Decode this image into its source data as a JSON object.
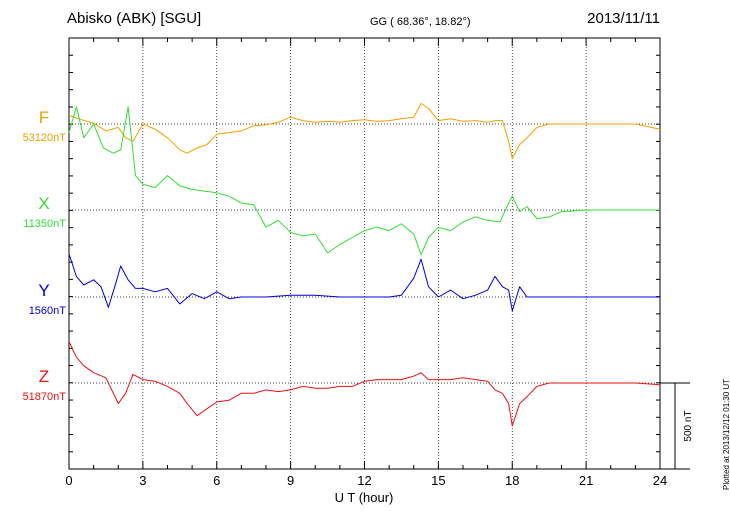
{
  "header": {
    "station": "Abisko (ABK)  [SGU]",
    "coords": "GG ( 68.36°,  18.82°)",
    "date": "2013/11/11"
  },
  "footer_note": "Plotted at 2013/12/12 01:30 UT",
  "scale_bar_label": "500 nT",
  "chart_data": {
    "type": "line",
    "xlabel": "U T (hour)",
    "xlim": [
      0,
      24
    ],
    "xticks": [
      0,
      3,
      6,
      9,
      12,
      15,
      18,
      21,
      24
    ],
    "scale_bar_nT": 500,
    "series": [
      {
        "name": "F",
        "baseline_label": "53120nT",
        "color": "#f0a000",
        "offset_nT": 0,
        "x": [
          0,
          0.5,
          1.0,
          1.5,
          2.0,
          2.3,
          2.6,
          3.0,
          3.5,
          4.0,
          4.5,
          4.8,
          5.2,
          5.6,
          6.0,
          6.5,
          7.0,
          7.5,
          8.0,
          8.5,
          9.0,
          9.5,
          10.0,
          10.5,
          11.0,
          11.5,
          12.0,
          12.5,
          13.0,
          13.5,
          14.0,
          14.3,
          14.6,
          15.0,
          15.5,
          16.0,
          16.5,
          17.0,
          17.3,
          17.6,
          17.85,
          18.0,
          18.3,
          18.6,
          19.0,
          19.5,
          20.0,
          21.0,
          22.0,
          23.0,
          24.0
        ],
        "y": [
          -50,
          -25,
          -5,
          40,
          20,
          80,
          100,
          0,
          30,
          80,
          150,
          170,
          140,
          120,
          60,
          50,
          40,
          10,
          5,
          -10,
          -40,
          -20,
          -10,
          -15,
          -10,
          -20,
          -25,
          -15,
          -20,
          -30,
          -40,
          -120,
          -90,
          -20,
          -30,
          -15,
          -20,
          -10,
          -20,
          -20,
          100,
          200,
          120,
          80,
          20,
          0,
          0,
          0,
          0,
          0,
          30
        ]
      },
      {
        "name": "X",
        "baseline_label": "11350nT",
        "color": "#33dd33",
        "offset_nT": 0,
        "x": [
          0,
          0.3,
          0.6,
          1.0,
          1.4,
          1.8,
          2.1,
          2.4,
          2.7,
          3.0,
          3.5,
          4.0,
          4.5,
          5.0,
          5.5,
          6.0,
          6.5,
          7.0,
          7.5,
          8.0,
          8.5,
          9.0,
          9.5,
          10.0,
          10.5,
          11.0,
          11.5,
          12.0,
          12.5,
          13.0,
          13.5,
          14.0,
          14.3,
          14.6,
          15.0,
          15.5,
          16.0,
          16.5,
          17.0,
          17.5,
          17.85,
          18.0,
          18.3,
          18.6,
          19.0,
          19.5,
          20.0,
          21.0,
          22.0,
          23.0,
          24.0
        ],
        "y": [
          -450,
          -600,
          -420,
          -500,
          -360,
          -330,
          -350,
          -600,
          -200,
          -150,
          -130,
          -200,
          -140,
          -120,
          -110,
          -100,
          -80,
          -40,
          -30,
          100,
          60,
          130,
          150,
          140,
          250,
          200,
          160,
          120,
          100,
          120,
          80,
          140,
          260,
          160,
          100,
          120,
          70,
          40,
          60,
          70,
          -40,
          -80,
          10,
          -20,
          50,
          40,
          10,
          0,
          0,
          0,
          0
        ]
      },
      {
        "name": "Y",
        "baseline_label": "1560nT",
        "color": "#0000dd",
        "offset_nT": 0,
        "x": [
          0,
          0.3,
          0.6,
          1.0,
          1.3,
          1.6,
          1.9,
          2.1,
          2.4,
          2.7,
          3.0,
          3.5,
          4.0,
          4.5,
          5.0,
          5.5,
          6.0,
          6.5,
          7.0,
          8.0,
          9.0,
          10.0,
          11.0,
          12.0,
          13.0,
          13.5,
          14.0,
          14.3,
          14.6,
          15.0,
          15.5,
          16.0,
          16.5,
          17.0,
          17.3,
          17.6,
          17.85,
          18.0,
          18.3,
          18.6,
          19.0,
          20.0,
          21.0,
          22.0,
          23.0,
          24.0
        ],
        "y": [
          -250,
          -120,
          -70,
          -100,
          -60,
          60,
          -80,
          -180,
          -100,
          -50,
          -50,
          -30,
          -50,
          40,
          -20,
          10,
          -30,
          10,
          0,
          0,
          -10,
          -10,
          0,
          0,
          0,
          -10,
          -110,
          -220,
          -60,
          0,
          -40,
          10,
          -10,
          -40,
          -120,
          -60,
          -40,
          80,
          -60,
          0,
          0,
          0,
          0,
          0,
          0,
          0
        ]
      },
      {
        "name": "Z",
        "baseline_label": "51870nT",
        "color": "#ee1111",
        "offset_nT": 0,
        "x": [
          0,
          0.3,
          0.6,
          1.0,
          1.5,
          2.0,
          2.3,
          2.6,
          3.0,
          3.5,
          4.0,
          4.5,
          4.8,
          5.2,
          5.6,
          6.0,
          6.5,
          7.0,
          7.5,
          8.0,
          8.5,
          9.0,
          9.5,
          10.0,
          10.5,
          11.0,
          11.5,
          12.0,
          12.5,
          13.0,
          13.5,
          14.0,
          14.3,
          14.6,
          15.0,
          15.5,
          16.0,
          16.5,
          17.0,
          17.3,
          17.6,
          17.85,
          18.0,
          18.3,
          18.6,
          19.0,
          19.5,
          20.0,
          21.0,
          22.0,
          23.0,
          24.0
        ],
        "y": [
          -240,
          -150,
          -100,
          -60,
          -30,
          120,
          60,
          -50,
          -20,
          -10,
          20,
          60,
          120,
          190,
          150,
          110,
          100,
          60,
          60,
          40,
          50,
          40,
          20,
          30,
          30,
          20,
          20,
          -10,
          -20,
          -20,
          -20,
          -40,
          -60,
          -20,
          -20,
          -20,
          -30,
          -20,
          -10,
          40,
          60,
          120,
          250,
          120,
          80,
          20,
          0,
          0,
          0,
          0,
          0,
          10
        ]
      }
    ]
  }
}
